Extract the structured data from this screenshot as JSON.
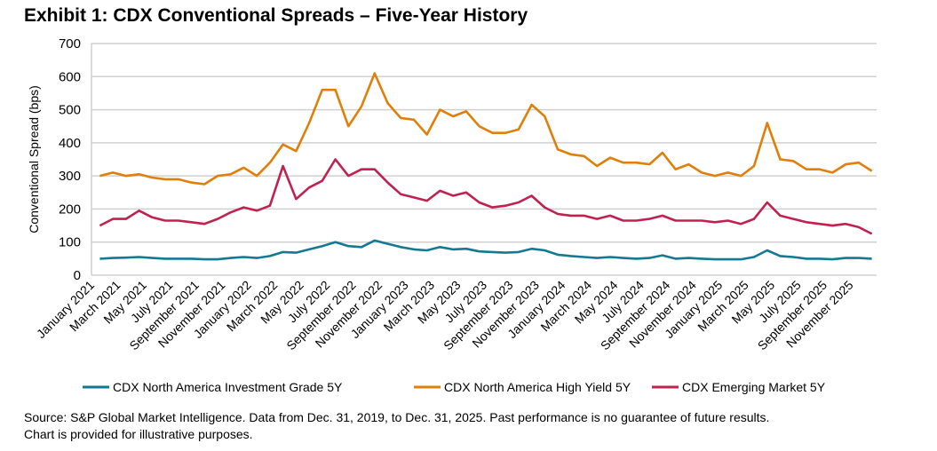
{
  "chart_data": {
    "type": "line",
    "title": "Exhibit 1: CDX Conventional Spreads – Five-Year History",
    "ylabel": "Conventional Spread (bps)",
    "xlabel": "",
    "ylim": [
      0,
      700
    ],
    "yticks": [
      0,
      100,
      200,
      300,
      400,
      500,
      600,
      700
    ],
    "grid": true,
    "legend_position": "bottom",
    "x_start": "January 2021",
    "x_end": "December 2025",
    "x_frequency": "monthly (approximate)",
    "xtick_labels": [
      "January 2021",
      "March 2021",
      "May 2021",
      "July 2021",
      "September 2021",
      "November 2021",
      "January 2022",
      "March 2022",
      "May 2022",
      "July 2022",
      "September 2022",
      "November 2022",
      "January 2023",
      "March 2023",
      "May 2023",
      "July 2023",
      "September 2023",
      "November 2023",
      "January 2024",
      "March 2024",
      "May 2024",
      "July 2024",
      "September 2024",
      "November 2024",
      "January 2025",
      "March 2025",
      "May 2025",
      "July 2025",
      "September 2025",
      "November 2025"
    ],
    "series": [
      {
        "name": "CDX North America Investment Grade 5Y",
        "color": "#137a91",
        "values": [
          50,
          52,
          53,
          55,
          52,
          50,
          50,
          50,
          48,
          48,
          52,
          55,
          52,
          58,
          70,
          68,
          78,
          88,
          100,
          88,
          85,
          105,
          95,
          85,
          78,
          75,
          85,
          78,
          80,
          72,
          70,
          68,
          70,
          80,
          75,
          62,
          58,
          55,
          52,
          55,
          52,
          50,
          52,
          60,
          50,
          52,
          50,
          48,
          48,
          48,
          55,
          75,
          58,
          55,
          50,
          50,
          48,
          52,
          52,
          50
        ]
      },
      {
        "name": "CDX North America High Yield 5Y",
        "color": "#e07f09",
        "values": [
          300,
          310,
          300,
          305,
          295,
          290,
          290,
          280,
          275,
          300,
          305,
          325,
          300,
          340,
          395,
          375,
          460,
          560,
          560,
          450,
          510,
          610,
          520,
          475,
          470,
          425,
          500,
          480,
          495,
          450,
          430,
          430,
          440,
          515,
          480,
          380,
          365,
          360,
          330,
          355,
          340,
          340,
          335,
          370,
          320,
          335,
          310,
          300,
          310,
          300,
          330,
          460,
          350,
          345,
          320,
          320,
          310,
          335,
          340,
          315
        ]
      },
      {
        "name": "CDX Emerging Market 5Y",
        "color": "#c0214f",
        "values": [
          150,
          170,
          170,
          195,
          175,
          165,
          165,
          160,
          155,
          170,
          190,
          205,
          195,
          210,
          330,
          230,
          265,
          285,
          350,
          300,
          320,
          320,
          280,
          245,
          235,
          225,
          255,
          240,
          250,
          220,
          205,
          210,
          220,
          240,
          205,
          185,
          180,
          180,
          170,
          180,
          165,
          165,
          170,
          180,
          165,
          165,
          165,
          160,
          165,
          155,
          170,
          220,
          180,
          170,
          160,
          155,
          150,
          155,
          145,
          125
        ]
      }
    ]
  },
  "footer": {
    "line1": "Source: S&P Global Market Intelligence.  Data from Dec. 31, 2019, to Dec. 31, 2025.  Past performance is no guarantee of future results.",
    "line2": "Chart is provided for illustrative purposes."
  }
}
